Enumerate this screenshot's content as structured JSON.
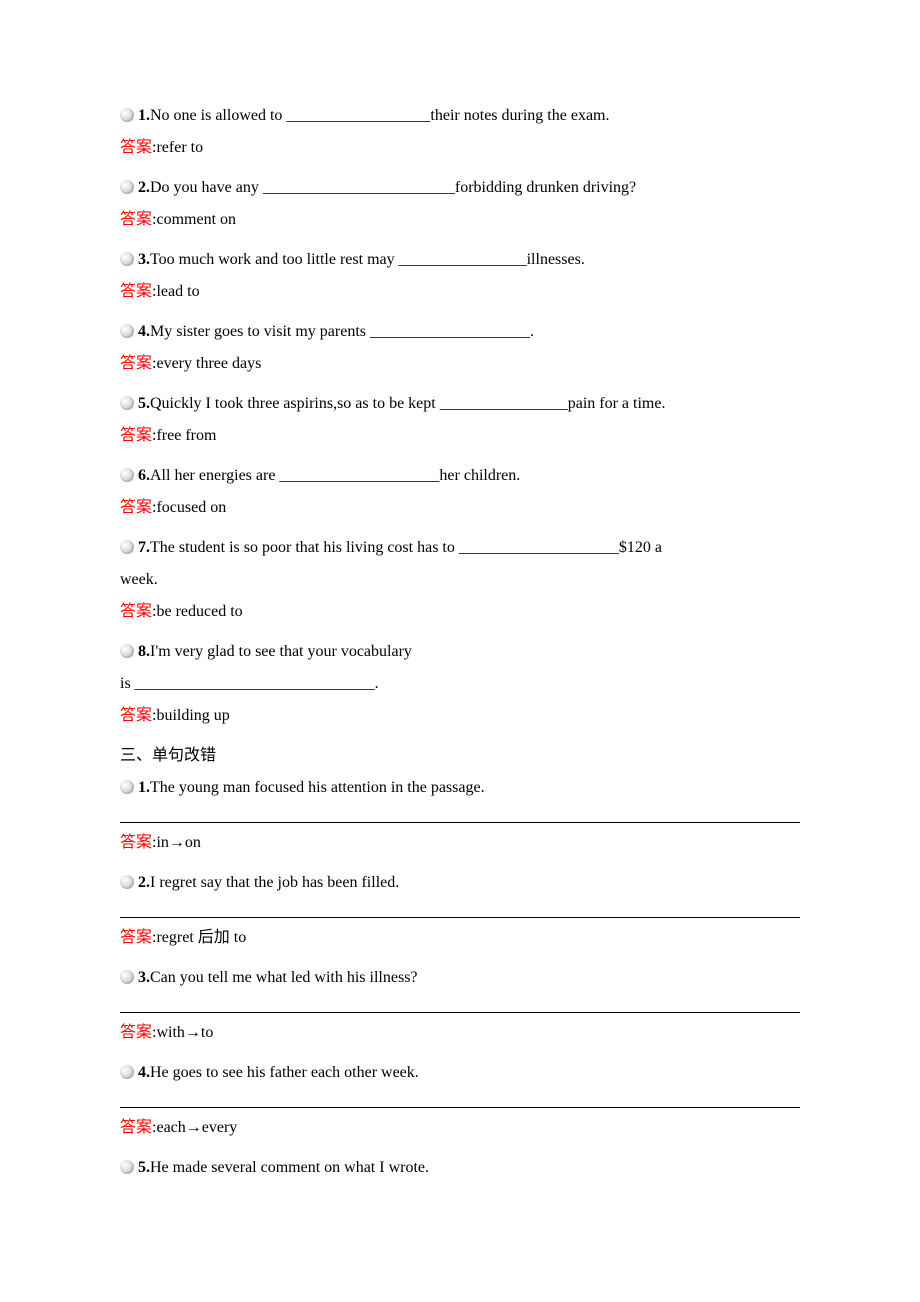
{
  "colors": {
    "text": "#000000",
    "answer_label": "#ff0000",
    "background": "#ffffff",
    "bullet_gradient_start": "#ffffff",
    "bullet_gradient_end": "#b0b0b0"
  },
  "typography": {
    "body_font": "Times New Roman, SimSun, serif",
    "font_size": 16,
    "line_height": 2.0
  },
  "answer_label": "答案",
  "section_heading": "三、单句改错",
  "fill_blank_questions": [
    {
      "number": "1.",
      "text_before": "No one is allowed to ",
      "blank": "__________________",
      "text_after": "their notes during the exam.",
      "answer": "refer to"
    },
    {
      "number": "2.",
      "text_before": "Do you have any ",
      "blank": "________________________",
      "text_after": "forbidding drunken driving?",
      "answer": "comment on"
    },
    {
      "number": "3.",
      "text_before": "Too much work and too little rest may ",
      "blank": "________________",
      "text_after": "illnesses.",
      "answer": "lead to"
    },
    {
      "number": "4.",
      "text_before": "My sister goes to visit my parents ",
      "blank": "____________________",
      "text_after": ".",
      "answer": "every three days"
    },
    {
      "number": "5.",
      "text_before": "Quickly I took three aspirins,so as to be kept ",
      "blank": "________________",
      "text_after": "pain for a time.",
      "answer": "free from"
    },
    {
      "number": "6.",
      "text_before": "All her energies are ",
      "blank": "____________________",
      "text_after": "her children.",
      "answer": "focused on"
    },
    {
      "number": "7.",
      "text_before": "The student is so poor that his living cost has to ",
      "blank": "____________________",
      "text_after": "$120 a",
      "continuation": "week.",
      "answer": "be reduced to"
    },
    {
      "number": "8.",
      "text_before": "I'm very glad to see that your vocabulary",
      "blank": "",
      "text_after": "",
      "continuation_with_blank": "is ______________________________.",
      "answer": "building up"
    }
  ],
  "correction_questions": [
    {
      "number": "1.",
      "text": "The young man focused his attention in the passage.",
      "answer": "in→on"
    },
    {
      "number": "2.",
      "text": "I regret say that the job has been filled.",
      "answer": "regret 后加 to"
    },
    {
      "number": "3.",
      "text": "Can you tell me what led with his illness?",
      "answer": "with→to"
    },
    {
      "number": "4.",
      "text": "He goes to see his father each other week.",
      "answer": "each→every"
    },
    {
      "number": "5.",
      "text": "He made several comment on what I wrote.",
      "answer": ""
    }
  ]
}
